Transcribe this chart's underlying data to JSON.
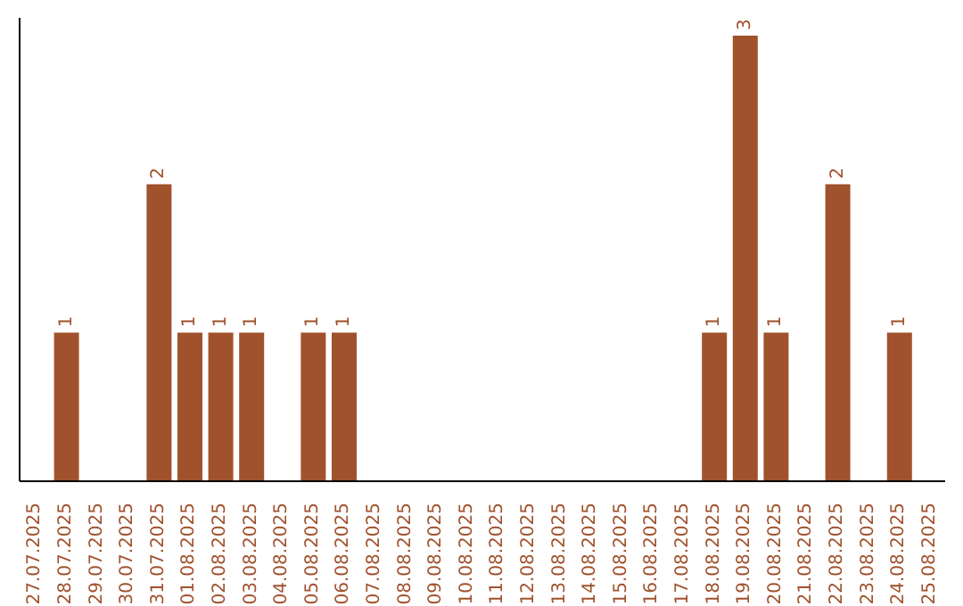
{
  "chart_data": {
    "type": "bar",
    "categories": [
      "27.07.2025",
      "28.07.2025",
      "29.07.2025",
      "30.07.2025",
      "31.07.2025",
      "01.08.2025",
      "02.08.2025",
      "03.08.2025",
      "04.08.2025",
      "05.08.2025",
      "06.08.2025",
      "07.08.2025",
      "08.08.2025",
      "09.08.2025",
      "10.08.2025",
      "11.08.2025",
      "12.08.2025",
      "13.08.2025",
      "14.08.2025",
      "15.08.2025",
      "16.08.2025",
      "17.08.2025",
      "18.08.2025",
      "19.08.2025",
      "20.08.2025",
      "21.08.2025",
      "22.08.2025",
      "23.08.2025",
      "24.08.2025",
      "25.08.2025"
    ],
    "values": [
      0,
      1,
      0,
      0,
      2,
      1,
      1,
      1,
      0,
      1,
      1,
      0,
      0,
      0,
      0,
      0,
      0,
      0,
      0,
      0,
      0,
      0,
      1,
      3,
      1,
      0,
      2,
      0,
      1,
      0
    ],
    "value_labels": [
      null,
      "1",
      null,
      null,
      "2",
      "1",
      "1",
      "1",
      null,
      "1",
      "1",
      null,
      null,
      null,
      null,
      null,
      null,
      null,
      null,
      null,
      null,
      null,
      "1",
      "3",
      "1",
      null,
      "2",
      null,
      "1",
      null
    ],
    "color": "#a0522d",
    "tick_labels": "x",
    "grid": false,
    "legend": false
  }
}
